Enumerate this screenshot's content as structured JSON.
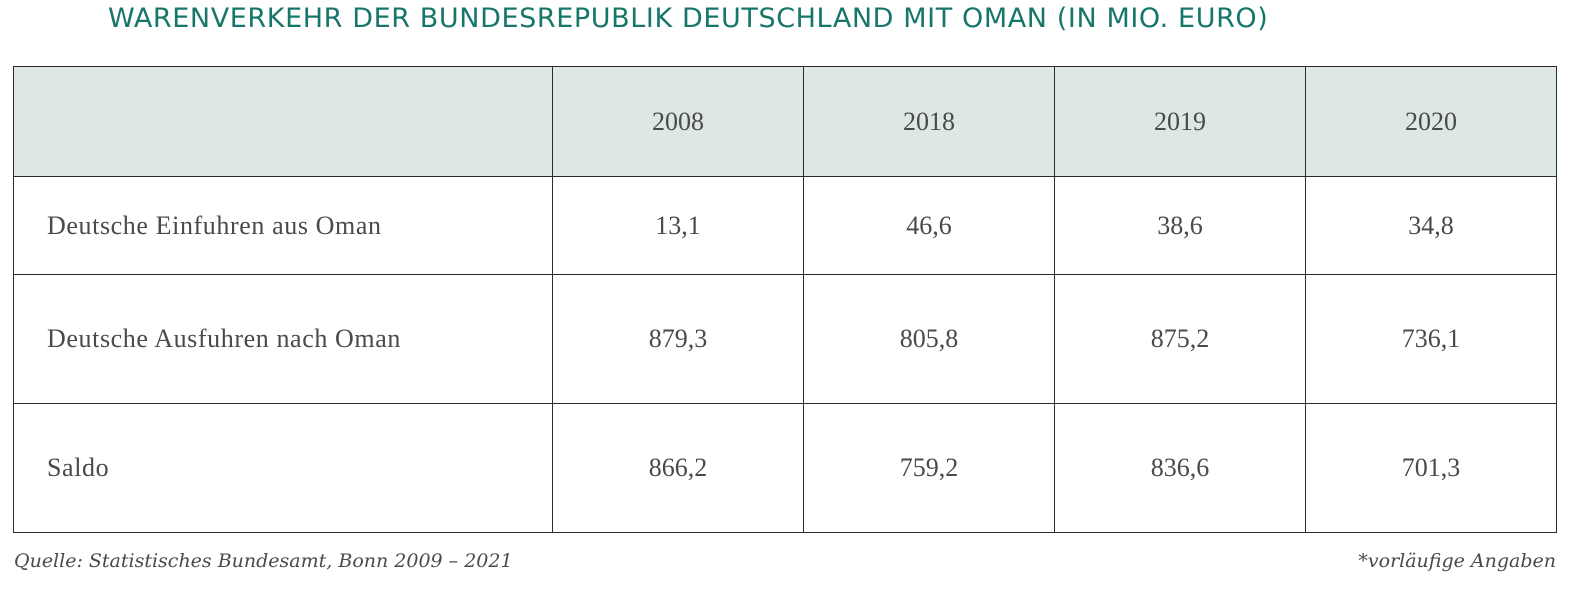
{
  "title": "WARENVERKEHR DER BUNDESREPUBLIK DEUTSCHLAND MIT OMAN (IN MIO. EURO)",
  "table": {
    "corner": "",
    "years": [
      "2008",
      "2018",
      "2019",
      "2020"
    ],
    "rows": [
      {
        "label": "Deutsche Einfuhren aus Oman",
        "values": [
          "13,1",
          "46,6",
          "38,6",
          "34,8"
        ]
      },
      {
        "label": "Deutsche Ausfuhren nach Oman",
        "values": [
          "879,3",
          "805,8",
          "875,2",
          "736,1"
        ]
      },
      {
        "label": "Saldo",
        "values": [
          "866,2",
          "759,2",
          "836,6",
          "701,3"
        ]
      }
    ]
  },
  "footer": {
    "source": "Quelle: Statistisches Bundesamt, Bonn 2009 – 2021",
    "note": "*vorläufige Angaben"
  },
  "colors": {
    "title": "#17766a",
    "header_bg": "#dde8e3",
    "border": "#2b2b2b",
    "text": "#4a4a4a"
  }
}
